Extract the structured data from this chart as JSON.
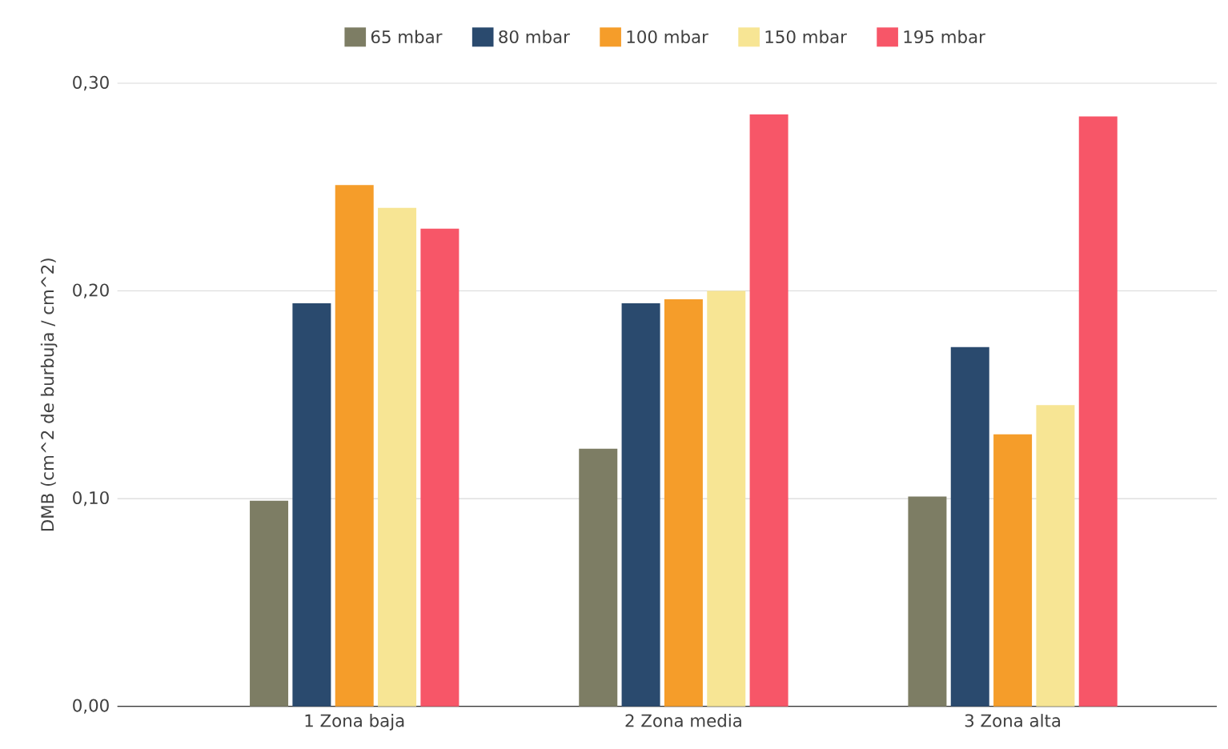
{
  "chart_data": {
    "type": "bar",
    "ylabel": "DMB (cm^2 de burbuja / cm^2)",
    "categories": [
      "1 Zona baja",
      "2 Zona media",
      "3 Zona alta"
    ],
    "series": [
      {
        "name": "65 mbar",
        "color": "#7d7d64",
        "values": [
          0.099,
          0.124,
          0.101
        ]
      },
      {
        "name": "80 mbar",
        "color": "#2a4a6e",
        "values": [
          0.194,
          0.194,
          0.173
        ]
      },
      {
        "name": "100 mbar",
        "color": "#f59d2a",
        "values": [
          0.251,
          0.196,
          0.131
        ]
      },
      {
        "name": "150 mbar",
        "color": "#f7e594",
        "values": [
          0.24,
          0.2,
          0.145
        ]
      },
      {
        "name": "195 mbar",
        "color": "#f75668",
        "values": [
          0.23,
          0.285,
          0.284
        ]
      }
    ],
    "ylim": [
      0,
      0.3
    ],
    "yticks": [
      {
        "value": 0,
        "label": "0,00"
      },
      {
        "value": 0.1,
        "label": "0,10"
      },
      {
        "value": 0.2,
        "label": "0,20"
      },
      {
        "value": 0.3,
        "label": "0,30"
      }
    ],
    "grid": "y",
    "legend": "top"
  }
}
